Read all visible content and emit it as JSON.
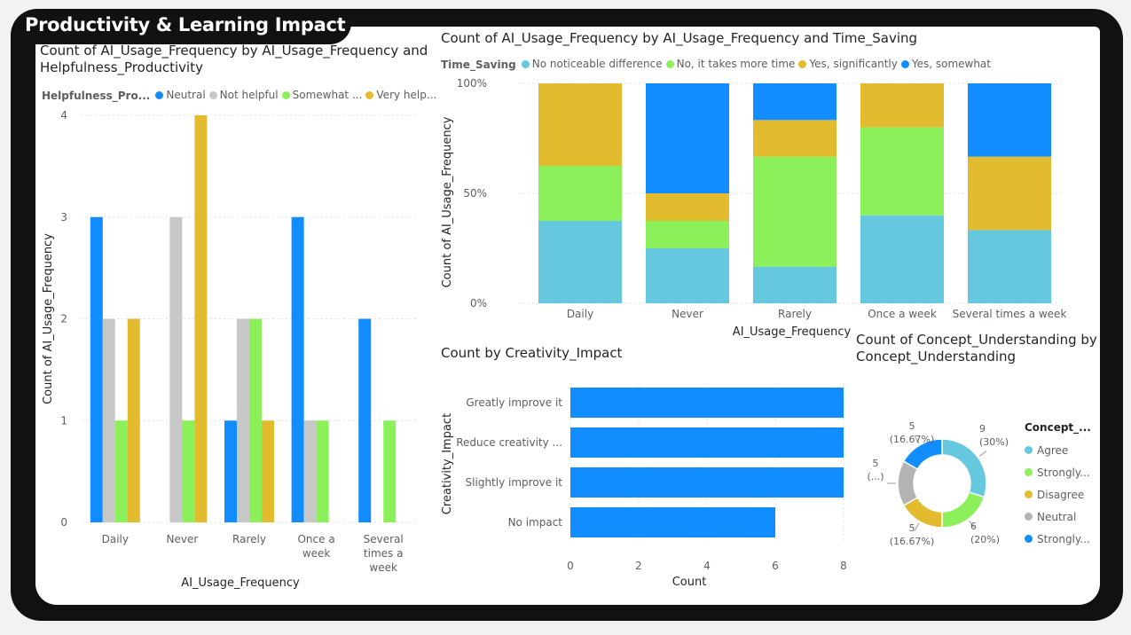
{
  "page": {
    "title": "Productivity & Learning Impact"
  },
  "colors": {
    "neutral_blue": "#118DFF",
    "grey": "#C8C8C8",
    "green": "#8CF05A",
    "yellow": "#E2BC2E",
    "light_blue": "#65C8DF",
    "grid": "#E1E1E1",
    "text": "#605E5C"
  },
  "chart_data": [
    {
      "id": "helpfulness",
      "type": "bar",
      "title": "Count of AI_Usage_Frequency by AI_Usage_Frequency and\nHelpfulness_Productivity",
      "legend_title": "Helpfulness_Pro...",
      "xlabel": "AI_Usage_Frequency",
      "ylabel": "Count of AI_Usage_Frequency",
      "ylim": [
        0,
        4
      ],
      "yticks": [
        "0",
        "1",
        "2",
        "3",
        "4"
      ],
      "categories": [
        "Daily",
        "Never",
        "Rarely",
        "Once a week",
        "Several times a week"
      ],
      "series": [
        {
          "name": "Neutral",
          "color": "#118DFF",
          "values": [
            3,
            0,
            1,
            3,
            2
          ]
        },
        {
          "name": "Not helpful",
          "color": "#C8C8C8",
          "values": [
            2,
            3,
            2,
            1,
            0
          ]
        },
        {
          "name": "Somewhat ...",
          "color": "#8CF05A",
          "values": [
            1,
            1,
            2,
            1,
            1
          ]
        },
        {
          "name": "Very help...",
          "color": "#E2BC2E",
          "values": [
            2,
            4,
            1,
            0,
            0
          ]
        }
      ]
    },
    {
      "id": "time_saving",
      "type": "bar",
      "stacking": "percent",
      "title": "Count of AI_Usage_Frequency by AI_Usage_Frequency and Time_Saving",
      "legend_title": "Time_Saving",
      "xlabel": "AI_Usage_Frequency",
      "ylabel": "Count of AI_Usage_Frequency",
      "yticks": [
        "0%",
        "50%",
        "100%"
      ],
      "categories": [
        "Daily",
        "Never",
        "Rarely",
        "Once a week",
        "Several times a week"
      ],
      "series": [
        {
          "name": "No noticeable difference",
          "color": "#65C8DF",
          "values": [
            3,
            2,
            1,
            2,
            1
          ]
        },
        {
          "name": "No, it takes more time",
          "color": "#8CF05A",
          "values": [
            2,
            1,
            3,
            2,
            0
          ]
        },
        {
          "name": "Yes, significantly",
          "color": "#E2BC2E",
          "values": [
            3,
            1,
            1,
            1,
            1
          ]
        },
        {
          "name": "Yes, somewhat",
          "color": "#118DFF",
          "values": [
            0,
            4,
            1,
            0,
            1
          ]
        }
      ]
    },
    {
      "id": "creativity",
      "type": "bar",
      "orientation": "horizontal",
      "title": "Count by Creativity_Impact",
      "xlabel": "Count",
      "ylabel": "Creativity_Impact",
      "xlim": [
        0,
        8
      ],
      "xticks": [
        "0",
        "2",
        "4",
        "6",
        "8"
      ],
      "categories": [
        "Greatly improve it",
        "Reduce creativity ...",
        "Slightly improve it",
        "No impact"
      ],
      "values": [
        8,
        8,
        8,
        6
      ],
      "color": "#118DFF"
    },
    {
      "id": "concept",
      "type": "pie",
      "donut": true,
      "title": "Count of Concept_Understanding by\nConcept_Understanding",
      "legend_title": "Concept_...",
      "slices": [
        {
          "name": "Agree",
          "color": "#65C8DF",
          "value": 9,
          "label_value": "9",
          "label_pct": "(30%)"
        },
        {
          "name": "Strongly...",
          "color": "#8CF05A",
          "value": 6,
          "label_value": "6",
          "label_pct": "(20%)"
        },
        {
          "name": "Disagree",
          "color": "#E2BC2E",
          "value": 5,
          "label_value": "5",
          "label_pct": "(16.67%)"
        },
        {
          "name": "Neutral",
          "color": "#B3B3B3",
          "value": 5,
          "label_value": "5",
          "label_pct": "(...)"
        },
        {
          "name": "Strongly...",
          "color": "#118DFF",
          "value": 5,
          "label_value": "5",
          "label_pct": "(16.67%)"
        }
      ]
    }
  ]
}
